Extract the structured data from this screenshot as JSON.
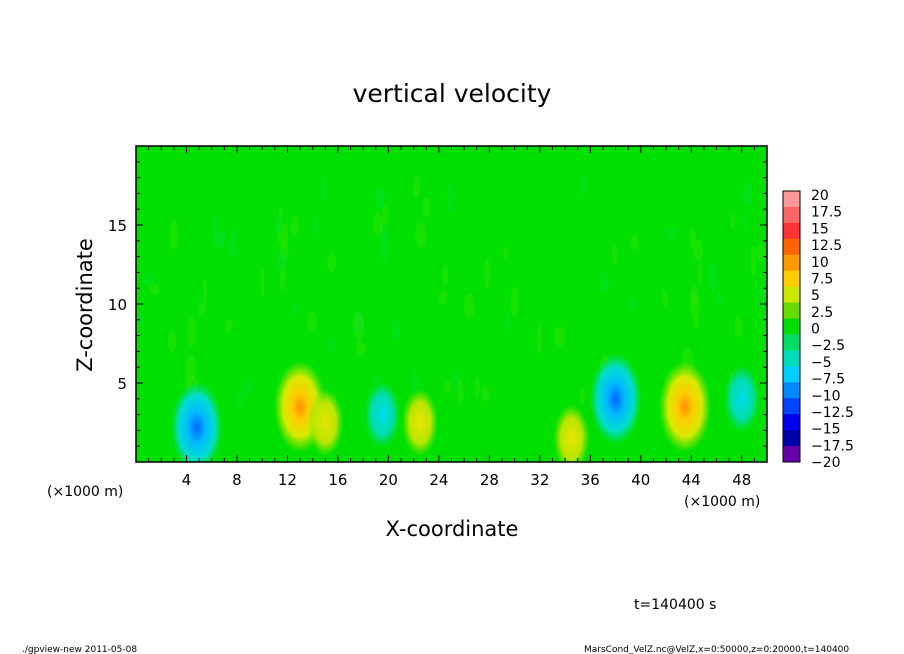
{
  "chart_data": {
    "type": "heatmap",
    "title": "vertical velocity",
    "xlabel": "X-coordinate",
    "ylabel": "Z-coordinate",
    "x_unit": "(×1000 m)",
    "x_unit_left": "(×1000 m)",
    "xlim": [
      0,
      50
    ],
    "ylim": [
      0,
      20
    ],
    "x_ticks": [
      "4",
      "8",
      "12",
      "16",
      "20",
      "24",
      "28",
      "32",
      "36",
      "40",
      "44",
      "48"
    ],
    "y_ticks": [
      "5",
      "10",
      "15"
    ],
    "colorbar": {
      "labels": [
        "20",
        "17.5",
        "15",
        "12.5",
        "10",
        "7.5",
        "5",
        "2.5",
        "0",
        "−2.5",
        "−5",
        "−7.5",
        "−10",
        "−12.5",
        "−15",
        "−17.5",
        "−20"
      ],
      "colors": [
        "#ff9999",
        "#ff6666",
        "#ff3333",
        "#ff6600",
        "#ff9900",
        "#ffcc00",
        "#cce600",
        "#66dd00",
        "#00dd00",
        "#00dd66",
        "#00ddbb",
        "#00ccff",
        "#0088ff",
        "#0044ff",
        "#0000ee",
        "#0000aa",
        "#6600aa"
      ]
    },
    "features": [
      {
        "kind": "updraft",
        "x": 13,
        "z": 3.5,
        "peak": 8
      },
      {
        "kind": "updraft",
        "x": 43.5,
        "z": 3.5,
        "peak": 8
      },
      {
        "kind": "updraft",
        "x": 22.5,
        "z": 2.5,
        "peak": 4
      },
      {
        "kind": "updraft",
        "x": 15,
        "z": 2.5,
        "peak": 3
      },
      {
        "kind": "updraft",
        "x": 34.5,
        "z": 1.5,
        "peak": 3
      },
      {
        "kind": "downdraft",
        "x": 4.8,
        "z": 2.2,
        "peak": -9
      },
      {
        "kind": "downdraft",
        "x": 38,
        "z": 4,
        "peak": -8
      },
      {
        "kind": "downdraft",
        "x": 19.5,
        "z": 3,
        "peak": -4
      },
      {
        "kind": "downdraft",
        "x": 48,
        "z": 4,
        "peak": -4
      }
    ]
  },
  "time_label": "t=140400 s",
  "footer_left": "./gpview-new  2011-05-08",
  "footer_right": "MarsCond_VelZ.nc@VelZ,x=0:50000,z=0:20000,t=140400"
}
